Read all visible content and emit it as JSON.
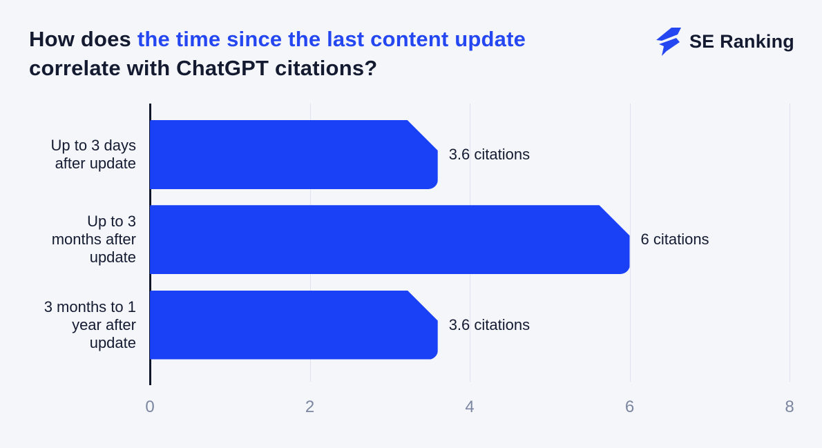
{
  "header": {
    "title_segments": [
      {
        "text": "How does ",
        "highlight": false
      },
      {
        "text": "the time since the last content update",
        "highlight": true
      },
      {
        "text": " correlate with ChatGPT citations?",
        "highlight": false
      }
    ],
    "brand_name": "SE Ranking",
    "brand_icon": "flash-icon"
  },
  "chart_data": {
    "type": "bar",
    "orientation": "horizontal",
    "title": "How does the time since the last content update correlate with ChatGPT citations?",
    "categories": [
      "Up to 3 days after update",
      "Up to 3 months after update",
      "3 months to 1 year after update"
    ],
    "categories_lines": [
      [
        "Up to 3 days",
        "after update"
      ],
      [
        "Up to 3",
        "months after",
        "update"
      ],
      [
        "3 months to 1",
        "year after",
        "update"
      ]
    ],
    "values": [
      3.6,
      6,
      3.6
    ],
    "value_labels": [
      "3.6 citations",
      "6 citations",
      "3.6 citations"
    ],
    "x_ticks": [
      "0",
      "2",
      "4",
      "6",
      "8"
    ],
    "x_tick_values": [
      0,
      2,
      4,
      6,
      8
    ],
    "xlim": [
      0,
      8
    ],
    "xlabel": "",
    "ylabel": "",
    "grid": true,
    "legend": false
  },
  "colors": {
    "background": "#f4f6fa",
    "bar": "#1a41f5",
    "title_dark": "#141b31",
    "title_highlight": "#2447f2",
    "axis_line": "#10172a",
    "gridline": "#dde2ee",
    "tick_text": "#7c86a1",
    "brand_blue": "#2447f2"
  }
}
